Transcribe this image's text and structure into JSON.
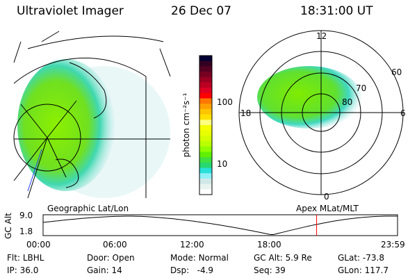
{
  "header": {
    "instrument": "Ultraviolet Imager",
    "date": "26 Dec 07",
    "time": "18:31:00 UT"
  },
  "left_panel": {
    "label": "Geographic Lat/Lon"
  },
  "right_panel": {
    "label": "Apex MLat/MLT",
    "mlt_labels": [
      "12",
      "18",
      "6",
      "0"
    ],
    "lat_labels": [
      "60",
      "70",
      "80"
    ]
  },
  "colorbar": {
    "unit_label": "photon cm⁻²s⁻¹",
    "ticks": [
      "100",
      "10"
    ],
    "colors": [
      "#000033",
      "#330022",
      "#550022",
      "#770022",
      "#990022",
      "#bb0022",
      "#dd0022",
      "#ff0000",
      "#ff7700",
      "#ffa000",
      "#ffc400",
      "#ffe000",
      "#ffff80",
      "#f5ff00",
      "#e8ff00",
      "#d4ff00",
      "#b8ff00",
      "#90ff00",
      "#60f000",
      "#40e040",
      "#28d870",
      "#28e0d8",
      "#90f0f8",
      "#d0e8e8",
      "#e8f4f0",
      "#ffffff"
    ]
  },
  "altitude_plot": {
    "ylabel": "GC Alt",
    "yticks": [
      "9.0",
      "1.8"
    ],
    "xticks": [
      "00:00",
      "06:00",
      "12:00",
      "18:00",
      "23:59"
    ],
    "current_time_hours": 18.52,
    "marker_color": "#ff0000"
  },
  "status": [
    {
      "label": "Flt:",
      "value": "LBHL"
    },
    {
      "label": "Door:",
      "value": "Open"
    },
    {
      "label": "Mode:",
      "value": "Normal"
    },
    {
      "label": "GC Alt:",
      "value": "5.9 Re"
    },
    {
      "label": "GLat:",
      "value": "-73.8"
    },
    {
      "label": "IP:",
      "value": "36.0"
    },
    {
      "label": "Gain:",
      "value": "14"
    },
    {
      "label": "Dsp:",
      "value": "  -4.9"
    },
    {
      "label": "Seq:",
      "value": "39"
    },
    {
      "label": "GLon:",
      "value": "117.7"
    }
  ]
}
